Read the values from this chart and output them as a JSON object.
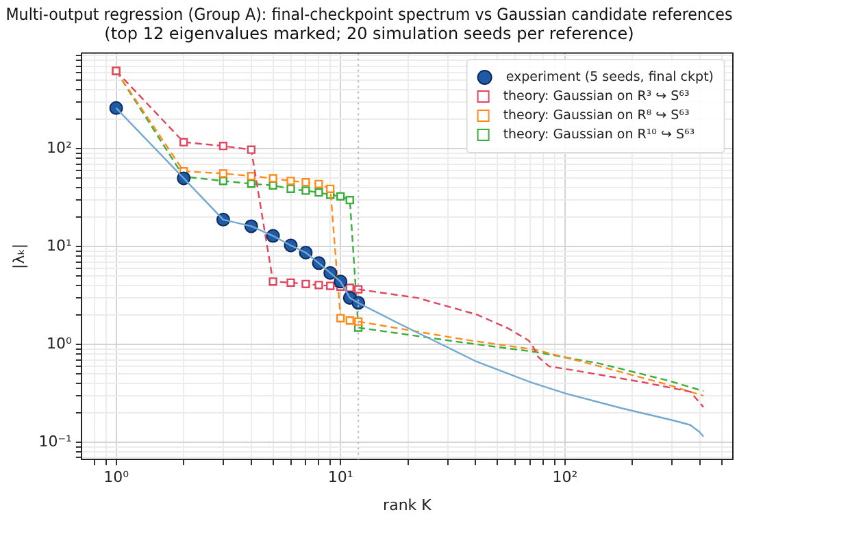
{
  "chart_data": {
    "type": "line",
    "title": "Multi-output regression (Group A): final-checkpoint spectrum vs Gaussian candidate references\n(top 12 eigenvalues marked; 20 simulation seeds per reference)",
    "xlabel": "rank K",
    "ylabel": "|λₖ|",
    "log": "xy",
    "grid": true,
    "legend": "top right",
    "xlim": [
      0.73,
      560
    ],
    "ylim": [
      0.067,
      950
    ],
    "xticks": [
      {
        "value": 0.8,
        "label": null
      },
      {
        "value": 0.9,
        "label": null
      },
      {
        "value": 1,
        "label": "10⁰"
      },
      {
        "value": 2,
        "label": null
      },
      {
        "value": 3,
        "label": null
      },
      {
        "value": 4,
        "label": null
      },
      {
        "value": 5,
        "label": null
      },
      {
        "value": 6,
        "label": null
      },
      {
        "value": 7,
        "label": null
      },
      {
        "value": 8,
        "label": null
      },
      {
        "value": 9,
        "label": null
      },
      {
        "value": 10,
        "label": "10¹"
      },
      {
        "value": 20,
        "label": null
      },
      {
        "value": 30,
        "label": null
      },
      {
        "value": 40,
        "label": null
      },
      {
        "value": 50,
        "label": null
      },
      {
        "value": 60,
        "label": null
      },
      {
        "value": 70,
        "label": null
      },
      {
        "value": 80,
        "label": null
      },
      {
        "value": 90,
        "label": null
      },
      {
        "value": 100,
        "label": "10²"
      },
      {
        "value": 200,
        "label": null
      },
      {
        "value": 300,
        "label": null
      },
      {
        "value": 400,
        "label": null
      },
      {
        "value": 500,
        "label": null
      }
    ],
    "yticks": [
      {
        "value": 0.07,
        "label": null
      },
      {
        "value": 0.08,
        "label": null
      },
      {
        "value": 0.09,
        "label": null
      },
      {
        "value": 0.1,
        "label": "10⁻¹"
      },
      {
        "value": 0.2,
        "label": null
      },
      {
        "value": 0.3,
        "label": null
      },
      {
        "value": 0.4,
        "label": null
      },
      {
        "value": 0.5,
        "label": null
      },
      {
        "value": 0.6,
        "label": null
      },
      {
        "value": 0.7,
        "label": null
      },
      {
        "value": 0.8,
        "label": null
      },
      {
        "value": 0.9,
        "label": null
      },
      {
        "value": 1,
        "label": "10⁰"
      },
      {
        "value": 2,
        "label": null
      },
      {
        "value": 3,
        "label": null
      },
      {
        "value": 4,
        "label": null
      },
      {
        "value": 5,
        "label": null
      },
      {
        "value": 6,
        "label": null
      },
      {
        "value": 7,
        "label": null
      },
      {
        "value": 8,
        "label": null
      },
      {
        "value": 9,
        "label": null
      },
      {
        "value": 10,
        "label": "10¹"
      },
      {
        "value": 20,
        "label": null
      },
      {
        "value": 30,
        "label": null
      },
      {
        "value": 40,
        "label": null
      },
      {
        "value": 50,
        "label": null
      },
      {
        "value": 60,
        "label": null
      },
      {
        "value": 70,
        "label": null
      },
      {
        "value": 80,
        "label": null
      },
      {
        "value": 90,
        "label": null
      },
      {
        "value": 100,
        "label": "10²"
      },
      {
        "value": 200,
        "label": null
      },
      {
        "value": 300,
        "label": null
      },
      {
        "value": 400,
        "label": null
      },
      {
        "value": 500,
        "label": null
      },
      {
        "value": 600,
        "label": null
      },
      {
        "value": 700,
        "label": null
      },
      {
        "value": 800,
        "label": null
      },
      {
        "value": 900,
        "label": null
      }
    ],
    "ref_lines": [
      {
        "axis": "x",
        "value": 12,
        "color": "#bbbbbb",
        "line_style": "dotted"
      }
    ],
    "series": [
      {
        "color": "#74a9cf",
        "marker": "none",
        "line_style": "solid",
        "x": [
          1,
          2,
          3,
          4,
          5,
          6,
          7,
          8,
          9,
          10,
          11,
          12,
          18.3,
          25.4,
          40.4,
          70.8,
          101,
          180,
          301,
          362,
          398,
          414
        ],
        "values": [
          261,
          50,
          18.9,
          16.2,
          12.9,
          10.3,
          8.7,
          6.8,
          5.4,
          4.4,
          3.0,
          2.67,
          1.63,
          1.13,
          0.67,
          0.41,
          0.316,
          0.223,
          0.169,
          0.151,
          0.128,
          0.115
        ]
      },
      {
        "color": "#e0475f",
        "marker": "none",
        "line_style": "dashed",
        "x": [
          12,
          22,
          40.4,
          56,
          69,
          72.4,
          75.9,
          85,
          113,
          226,
          362,
          414
        ],
        "values": [
          3.67,
          3.0,
          2.03,
          1.46,
          1.1,
          0.935,
          0.75,
          0.6,
          0.54,
          0.41,
          0.33,
          0.23
        ]
      },
      {
        "color": "#ff8c1a",
        "marker": "none",
        "line_style": "dashed",
        "x": [
          12,
          35.2,
          74.2,
          143,
          287,
          414
        ],
        "values": [
          1.72,
          1.13,
          0.885,
          0.6,
          0.39,
          0.3
        ]
      },
      {
        "type": "scatter",
        "name": "experiment (5 seeds, final ckpt)",
        "color": "#1f5aa6",
        "marker": "circle",
        "x": [
          1,
          2,
          3,
          4,
          5,
          6,
          7,
          8,
          9,
          10,
          11,
          12
        ],
        "values": [
          261,
          50,
          18.9,
          16.2,
          12.9,
          10.3,
          8.7,
          6.8,
          5.4,
          4.4,
          3.0,
          2.67
        ]
      },
      {
        "color": "#3aae3a",
        "marker": "none",
        "line_style": "dashed",
        "x": [
          12,
          35.2,
          74.2,
          143,
          287,
          414
        ],
        "values": [
          1.49,
          1.05,
          0.84,
          0.64,
          0.43,
          0.335
        ]
      },
      {
        "name": "theory: Gaussian on R³ ↪ S⁶³",
        "color": "#e0475f",
        "marker": "square",
        "line_style": "dashed",
        "x": [
          1,
          2,
          3,
          4,
          5,
          6,
          7,
          8,
          9,
          10,
          11,
          12
        ],
        "values": [
          625,
          117,
          107,
          98,
          4.4,
          4.3,
          4.16,
          4.06,
          3.98,
          3.9,
          3.8,
          3.67
        ]
      },
      {
        "name": "theory: Gaussian on R⁸ ↪ S⁶³",
        "color": "#ff8c1a",
        "marker": "square",
        "line_style": "dashed",
        "x": [
          1,
          2,
          3,
          4,
          5,
          6,
          7,
          8,
          9,
          10,
          11,
          12
        ],
        "values": [
          625,
          59,
          56,
          52.7,
          50,
          47,
          45.6,
          43.7,
          39,
          1.86,
          1.76,
          1.72
        ]
      },
      {
        "name": "theory: Gaussian on R¹⁰ ↪ S⁶³",
        "color": "#3aae3a",
        "marker": "square",
        "line_style": "dashed",
        "x": [
          1,
          2,
          3,
          4,
          5,
          6,
          7,
          8,
          9,
          10,
          11,
          12
        ],
        "values": [
          625,
          52,
          47,
          44,
          42.3,
          39,
          37.4,
          35.8,
          33.9,
          32.7,
          30,
          1.49
        ]
      }
    ]
  }
}
